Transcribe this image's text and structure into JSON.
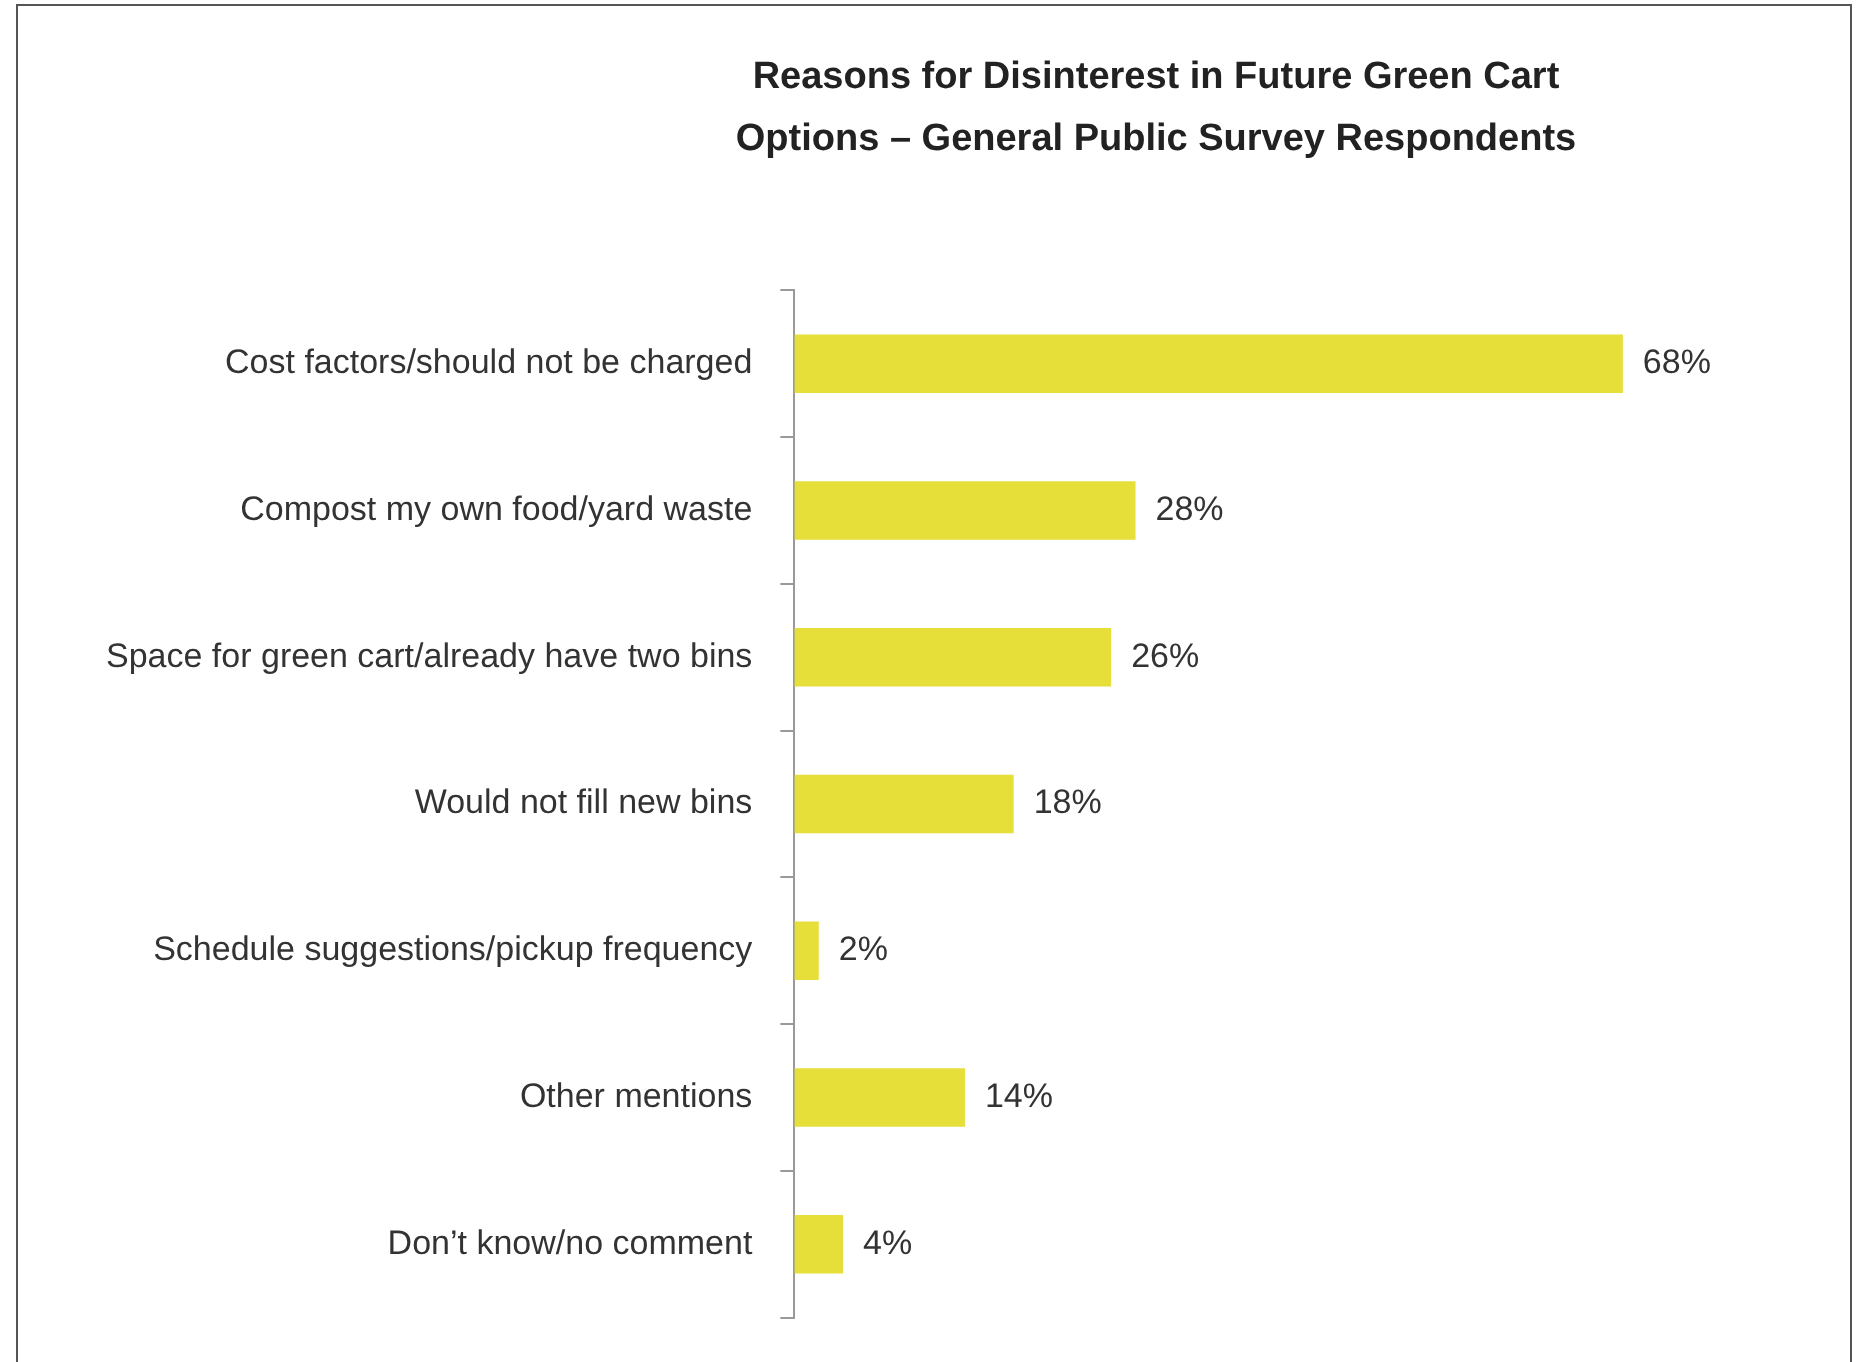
{
  "chart_data": {
    "type": "bar",
    "orientation": "horizontal",
    "title": "Reasons for Disinterest in Future Green Cart Options – General Public Survey Respondents",
    "categories": [
      "Cost factors/should not be charged",
      "Compost my own food/yard waste",
      "Space for green cart/already have two bins",
      "Would not fill new bins",
      "Schedule suggestions/pickup frequency",
      "Other mentions",
      "Don’t know/no comment"
    ],
    "values": [
      68,
      28,
      26,
      18,
      2,
      14,
      4
    ],
    "value_labels": [
      "68%",
      "28%",
      "26%",
      "18%",
      "2%",
      "14%",
      "4%"
    ],
    "color": "#e6df3a",
    "legend": false
  }
}
